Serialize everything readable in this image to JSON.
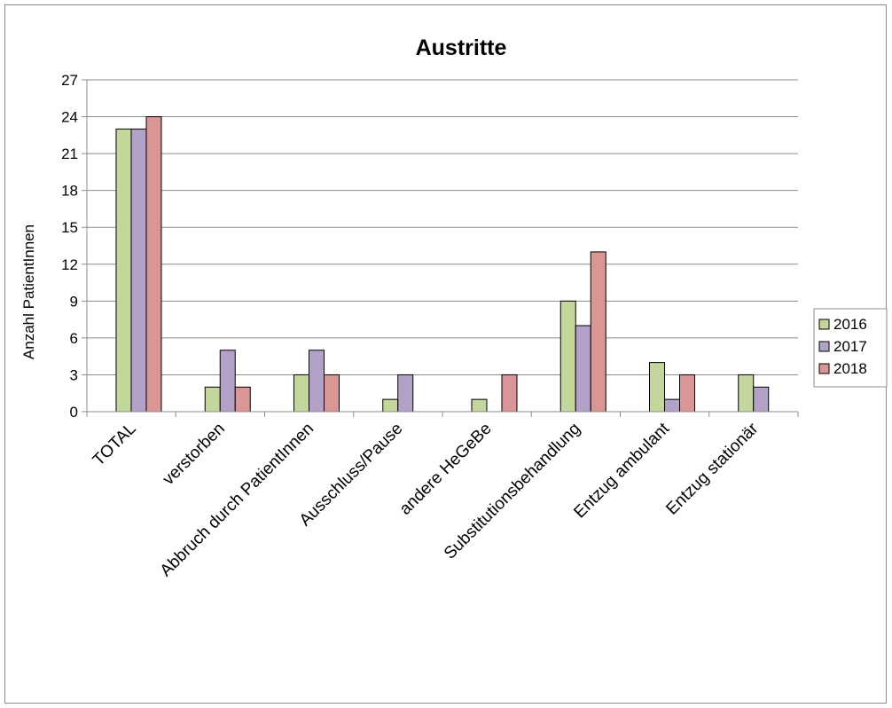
{
  "chart_data": {
    "type": "bar",
    "title": "Austritte",
    "xlabel": "",
    "ylabel": "Anzahl PatientInnen",
    "ylim": [
      0,
      27
    ],
    "yticks": [
      0,
      3,
      6,
      9,
      12,
      15,
      18,
      21,
      24,
      27
    ],
    "grid": true,
    "legend_position": "right",
    "categories": [
      "TOTAL",
      "verstorben",
      "Abbruch durch PatientInnen",
      "Ausschluss/Pause",
      "andere HeGeBe",
      "Substitutionsbehandlung",
      "Entzug ambulant",
      "Entzug stationär"
    ],
    "series": [
      {
        "name": "2016",
        "color": "#c3d69b",
        "values": [
          23,
          2,
          3,
          1,
          1,
          9,
          4,
          3
        ]
      },
      {
        "name": "2017",
        "color": "#b3a2c7",
        "values": [
          23,
          5,
          5,
          3,
          0,
          7,
          1,
          2
        ]
      },
      {
        "name": "2018",
        "color": "#d99694",
        "values": [
          24,
          2,
          3,
          0,
          3,
          13,
          3,
          0
        ]
      }
    ]
  }
}
